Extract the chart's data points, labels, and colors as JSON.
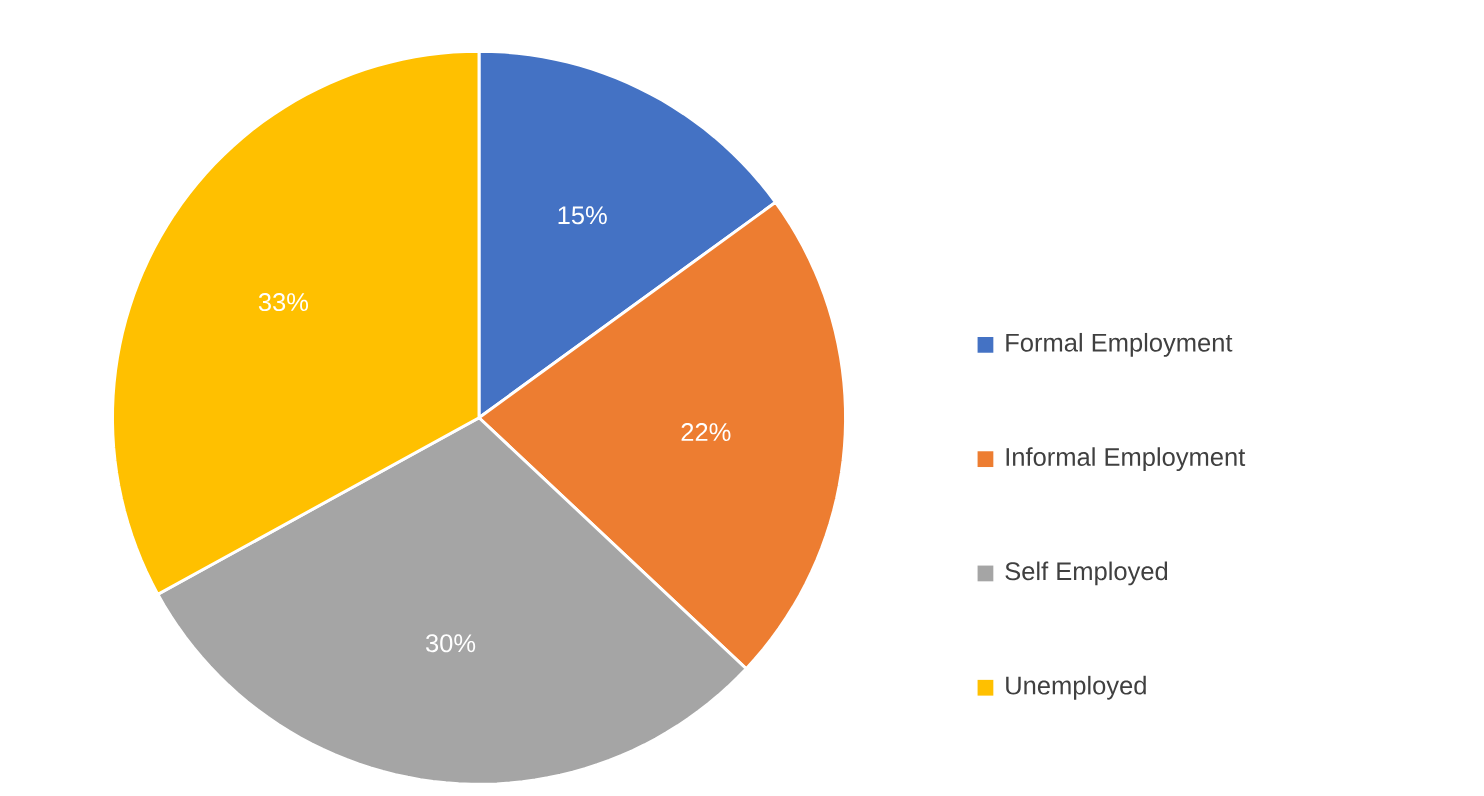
{
  "chart_data": {
    "type": "pie",
    "categories": [
      "Formal Employment",
      "Informal Employment",
      "Self Employed",
      "Unemployed"
    ],
    "values": [
      15,
      22,
      30,
      33
    ],
    "colors": [
      "#4472c4",
      "#ed7d31",
      "#a5a5a5",
      "#ffc000"
    ],
    "value_labels": [
      "15%",
      "22%",
      "30%",
      "33%"
    ],
    "legend": "right"
  }
}
